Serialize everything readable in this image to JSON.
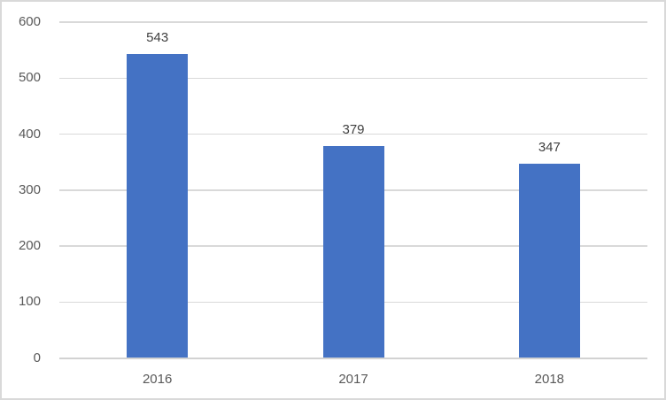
{
  "chart_data": {
    "type": "bar",
    "title": "",
    "xlabel": "",
    "ylabel": "",
    "categories": [
      "2016",
      "2017",
      "2018"
    ],
    "values": [
      543,
      379,
      347
    ],
    "data_labels": [
      "543",
      "379",
      "347"
    ],
    "ylim": [
      0,
      600
    ],
    "yticks": [
      0,
      100,
      200,
      300,
      400,
      500,
      600
    ],
    "ytick_labels": [
      "0",
      "100",
      "200",
      "300",
      "400",
      "500",
      "600"
    ],
    "grid": true,
    "legend": "none",
    "colors": {
      "bar": "#4472c4",
      "gridline": "#d9d9d9",
      "axis_line": "#d2d2d2",
      "tick_label": "#595959",
      "data_label": "#404040",
      "border": "#d9d9d9",
      "background": "#ffffff"
    }
  }
}
